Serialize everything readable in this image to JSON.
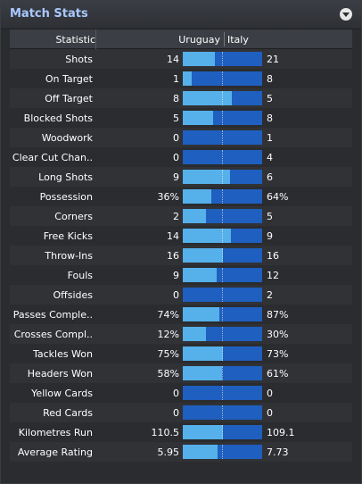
{
  "panel": {
    "title": "Match Stats",
    "menu_icon": "dropdown-arrow-icon"
  },
  "columns": {
    "stat": "Statistic",
    "home": "Uruguay",
    "away": "Italy"
  },
  "colors": {
    "home_bar": "#56b0ea",
    "away_bar": "#1f5fbf",
    "title": "#a8c8ff"
  },
  "stats": [
    {
      "label": "Shots",
      "home": "14",
      "away": "21",
      "home_share": 0.4
    },
    {
      "label": "On Target",
      "home": "1",
      "away": "8",
      "home_share": 0.11
    },
    {
      "label": "Off Target",
      "home": "8",
      "away": "5",
      "home_share": 0.62
    },
    {
      "label": "Blocked Shots",
      "home": "5",
      "away": "8",
      "home_share": 0.38
    },
    {
      "label": "Woodwork",
      "home": "0",
      "away": "1",
      "home_share": 0.0
    },
    {
      "label": "Clear Cut Chan..",
      "home": "0",
      "away": "4",
      "home_share": 0.0
    },
    {
      "label": "Long Shots",
      "home": "9",
      "away": "6",
      "home_share": 0.6
    },
    {
      "label": "Possession",
      "home": "36%",
      "away": "64%",
      "home_share": 0.36
    },
    {
      "label": "Corners",
      "home": "2",
      "away": "5",
      "home_share": 0.29
    },
    {
      "label": "Free Kicks",
      "home": "14",
      "away": "9",
      "home_share": 0.61
    },
    {
      "label": "Throw-Ins",
      "home": "16",
      "away": "16",
      "home_share": 0.5
    },
    {
      "label": "Fouls",
      "home": "9",
      "away": "12",
      "home_share": 0.43
    },
    {
      "label": "Offsides",
      "home": "0",
      "away": "2",
      "home_share": 0.0
    },
    {
      "label": "Passes Comple..",
      "home": "74%",
      "away": "87%",
      "home_share": 0.46
    },
    {
      "label": "Crosses Compl..",
      "home": "12%",
      "away": "30%",
      "home_share": 0.29
    },
    {
      "label": "Tackles Won",
      "home": "75%",
      "away": "73%",
      "home_share": 0.51
    },
    {
      "label": "Headers Won",
      "home": "58%",
      "away": "61%",
      "home_share": 0.49
    },
    {
      "label": "Yellow Cards",
      "home": "0",
      "away": "0",
      "home_share": 0.0
    },
    {
      "label": "Red Cards",
      "home": "0",
      "away": "0",
      "home_share": 0.0
    },
    {
      "label": "Kilometres Run",
      "home": "110.5",
      "away": "109.1",
      "home_share": 0.5
    },
    {
      "label": "Average Rating",
      "home": "5.95",
      "away": "7.73",
      "home_share": 0.44
    }
  ]
}
